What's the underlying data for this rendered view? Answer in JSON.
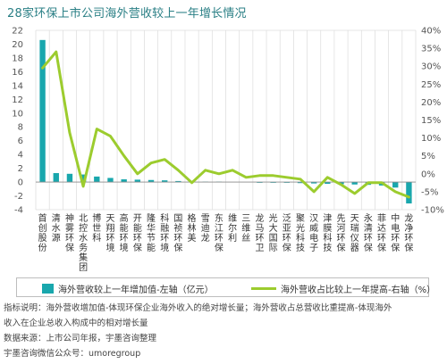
{
  "chart_data": {
    "type": "bar+line",
    "title": "28家环保上市公司海外营收较上一年增长情况",
    "categories": [
      "首创股份",
      "清水源",
      "神雾环保",
      "北控水务集团",
      "博世科",
      "天翔环境",
      "高能环境",
      "开能环保",
      "隆华节能",
      "科融环境",
      "国祯环保",
      "格林美",
      "雪迪龙",
      "东江环保",
      "维尔利",
      "三维丝",
      "龙马环卫",
      "光大国际",
      "泛亚环保",
      "聚光科技",
      "汉威电子",
      "津膜科技",
      "先河环保",
      "天瑞仪器",
      "永清环保",
      "菲达环保",
      "中电环保",
      "龙净环保"
    ],
    "y_left": {
      "min": -4,
      "max": 22,
      "ticks": [
        22,
        20,
        18,
        16,
        14,
        12,
        10,
        8,
        6,
        4,
        2,
        0,
        -2,
        -4
      ]
    },
    "y_right": {
      "min": -10,
      "max": 40,
      "ticks": [
        "40%",
        "35%",
        "30%",
        "25%",
        "20%",
        "15%",
        "10%",
        "5%",
        "0%",
        "-5%",
        "-10%"
      ]
    },
    "series": [
      {
        "name": "海外营收较上一年增加值-左轴（亿元）",
        "type": "bar",
        "axis": "left",
        "color": "#19a7ad",
        "values": [
          20.6,
          1.3,
          1.2,
          1.1,
          0.8,
          0.6,
          0.4,
          0.35,
          0.3,
          0.25,
          0.15,
          0.1,
          0.05,
          0.05,
          0.0,
          0.0,
          -0.05,
          -0.1,
          -0.1,
          -0.15,
          -0.2,
          -0.25,
          -0.3,
          -0.35,
          -0.4,
          -0.5,
          -0.8,
          -3.1
        ]
      },
      {
        "name": "海外营收占比较上一年提高-右轴（%）",
        "type": "line",
        "axis": "right",
        "color": "#9ccc2e",
        "values": [
          29.5,
          34,
          11.5,
          -3.5,
          12.5,
          10.5,
          5,
          0,
          3,
          4,
          1,
          -2.5,
          1,
          0,
          1,
          -1,
          -0.5,
          -0.5,
          -1,
          -1.5,
          -5,
          -1,
          -3,
          -5.5,
          -2.5,
          -2.5,
          -5,
          -6.5
        ]
      }
    ]
  },
  "notes": {
    "line1": "指标说明：海外营收增加值-体现环保企业海外收入的绝对增长量；海外营收占总营收比重提高-体现海外",
    "line2": "收入在企业总收入构成中的相对增长量",
    "line3": "数据来源：上市公司年报，宇墨咨询整理",
    "line4": "宇墨咨询微信公众号：umoregroup"
  }
}
